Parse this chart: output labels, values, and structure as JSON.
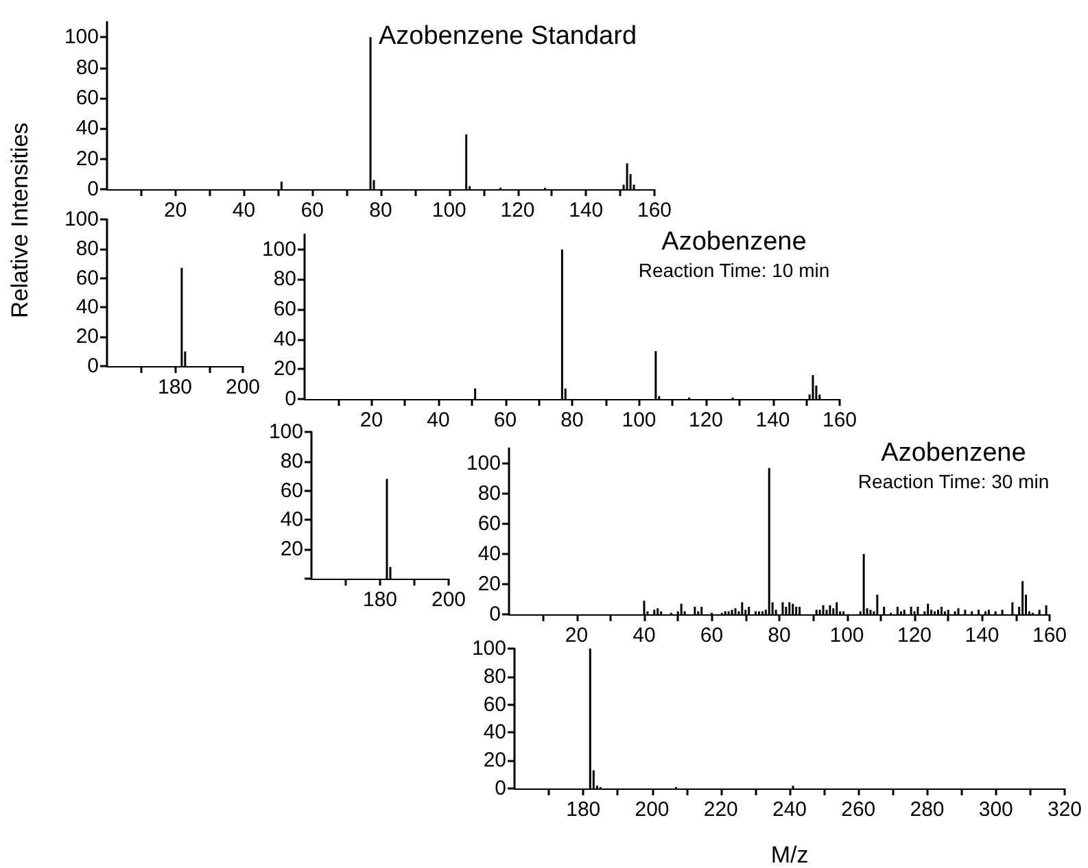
{
  "chart_data": [
    {
      "type": "bar",
      "title": "Azobenzene Standard",
      "ylabel": "Relative Intensities",
      "color": "#000000",
      "grid": false,
      "x": [
        51,
        77,
        78,
        105,
        106,
        115,
        128,
        151,
        152,
        153,
        154
      ],
      "values": [
        5,
        100,
        6,
        36,
        2,
        1,
        1,
        3,
        17,
        10,
        3
      ],
      "xlim": [
        0,
        160
      ],
      "xticks": [
        {
          "value": 10,
          "label": null
        },
        20,
        {
          "value": 30,
          "label": null
        },
        40,
        {
          "value": 50,
          "label": null
        },
        60,
        {
          "value": 70,
          "label": null
        },
        80,
        {
          "value": 90,
          "label": null
        },
        100,
        {
          "value": 110,
          "label": null
        },
        120,
        {
          "value": 130,
          "label": null
        },
        140,
        {
          "value": 150,
          "label": null
        },
        160
      ],
      "ylim": [
        0,
        110
      ],
      "yticks": [
        0,
        20,
        40,
        60,
        80,
        100
      ]
    },
    {
      "type": "bar",
      "color": "#000000",
      "grid": false,
      "x": [
        182,
        183
      ],
      "values": [
        67,
        10
      ],
      "xlim": [
        160,
        200
      ],
      "xticks": [
        {
          "value": 170,
          "label": null
        },
        180,
        {
          "value": 190,
          "label": null
        },
        200
      ],
      "ylim": [
        0,
        100
      ],
      "yticks": [
        0,
        20,
        40,
        60,
        80,
        100
      ]
    },
    {
      "type": "bar",
      "title": "Azobenzene",
      "subtitle": "Reaction Time: 10 min",
      "color": "#000000",
      "grid": false,
      "x": [
        51,
        77,
        78,
        105,
        106,
        115,
        128,
        151,
        152,
        153,
        154
      ],
      "values": [
        7,
        100,
        7,
        32,
        2,
        1,
        1,
        3,
        16,
        9,
        3
      ],
      "xlim": [
        0,
        160
      ],
      "xticks": [
        {
          "value": 10,
          "label": null
        },
        20,
        {
          "value": 30,
          "label": null
        },
        40,
        {
          "value": 50,
          "label": null
        },
        60,
        {
          "value": 70,
          "label": null
        },
        80,
        {
          "value": 90,
          "label": null
        },
        100,
        {
          "value": 110,
          "label": null
        },
        120,
        {
          "value": 130,
          "label": null
        },
        140,
        {
          "value": 150,
          "label": null
        },
        160
      ],
      "ylim": [
        0,
        110
      ],
      "yticks": [
        0,
        20,
        40,
        60,
        80,
        100
      ]
    },
    {
      "type": "bar",
      "color": "#000000",
      "grid": false,
      "x": [
        182,
        183
      ],
      "values": [
        68,
        8
      ],
      "xlim": [
        160,
        200
      ],
      "xticks": [
        {
          "value": 170,
          "label": null
        },
        180,
        {
          "value": 190,
          "label": null
        },
        200
      ],
      "ylim": [
        0,
        100
      ],
      "yticks": [
        {
          "value": 0,
          "label": null
        },
        20,
        40,
        60,
        80,
        100
      ]
    },
    {
      "type": "bar",
      "title": "Azobenzene",
      "subtitle": "Reaction Time: 30 min",
      "color": "#000000",
      "grid": false,
      "x": [
        40,
        41,
        43,
        44,
        45,
        48,
        50,
        51,
        52,
        55,
        56,
        57,
        60,
        63,
        64,
        65,
        66,
        67,
        68,
        69,
        70,
        71,
        73,
        74,
        75,
        76,
        77,
        78,
        79,
        81,
        82,
        83,
        84,
        85,
        86,
        91,
        92,
        93,
        94,
        95,
        96,
        97,
        98,
        99,
        104,
        105,
        106,
        107,
        108,
        109,
        111,
        113,
        115,
        116,
        117,
        119,
        120,
        121,
        123,
        124,
        125,
        126,
        127,
        128,
        129,
        130,
        132,
        133,
        135,
        137,
        139,
        141,
        142,
        144,
        146,
        149,
        151,
        152,
        153,
        154,
        155,
        157,
        159
      ],
      "values": [
        9,
        2,
        3,
        4,
        2,
        1,
        2,
        7,
        2,
        5,
        2,
        5,
        1,
        1,
        2,
        2,
        3,
        4,
        2,
        8,
        3,
        5,
        2,
        2,
        2,
        3,
        97,
        8,
        3,
        8,
        5,
        8,
        7,
        5,
        5,
        3,
        3,
        6,
        3,
        6,
        4,
        8,
        2,
        2,
        2,
        40,
        4,
        3,
        2,
        13,
        5,
        1,
        5,
        2,
        3,
        5,
        2,
        5,
        2,
        7,
        3,
        2,
        3,
        5,
        2,
        3,
        2,
        4,
        3,
        2,
        3,
        2,
        3,
        2,
        3,
        8,
        5,
        22,
        13,
        2,
        1,
        3,
        6
      ],
      "xlim": [
        0,
        160
      ],
      "xticks": [
        {
          "value": 10,
          "label": null
        },
        20,
        {
          "value": 30,
          "label": null
        },
        40,
        {
          "value": 50,
          "label": null
        },
        60,
        {
          "value": 70,
          "label": null
        },
        80,
        {
          "value": 90,
          "label": null
        },
        100,
        {
          "value": 110,
          "label": null
        },
        120,
        {
          "value": 130,
          "label": null
        },
        140,
        {
          "value": 150,
          "label": null
        },
        160
      ],
      "ylim": [
        0,
        110
      ],
      "yticks": [
        0,
        20,
        40,
        60,
        80,
        100
      ]
    },
    {
      "type": "bar",
      "xlabel": "M/z",
      "color": "#000000",
      "grid": false,
      "x": [
        182,
        183,
        184,
        185,
        207,
        241
      ],
      "values": [
        100,
        13,
        2,
        1,
        1,
        2
      ],
      "xlim": [
        160,
        320
      ],
      "xticks": [
        {
          "value": 170,
          "label": null
        },
        180,
        {
          "value": 190,
          "label": null
        },
        200,
        {
          "value": 210,
          "label": null
        },
        220,
        {
          "value": 230,
          "label": null
        },
        240,
        {
          "value": 250,
          "label": null
        },
        260,
        {
          "value": 270,
          "label": null
        },
        280,
        {
          "value": 290,
          "label": null
        },
        300,
        {
          "value": 310,
          "label": null
        },
        320
      ],
      "ylim": [
        0,
        100
      ],
      "yticks": [
        0,
        20,
        40,
        60,
        80,
        100
      ]
    }
  ]
}
